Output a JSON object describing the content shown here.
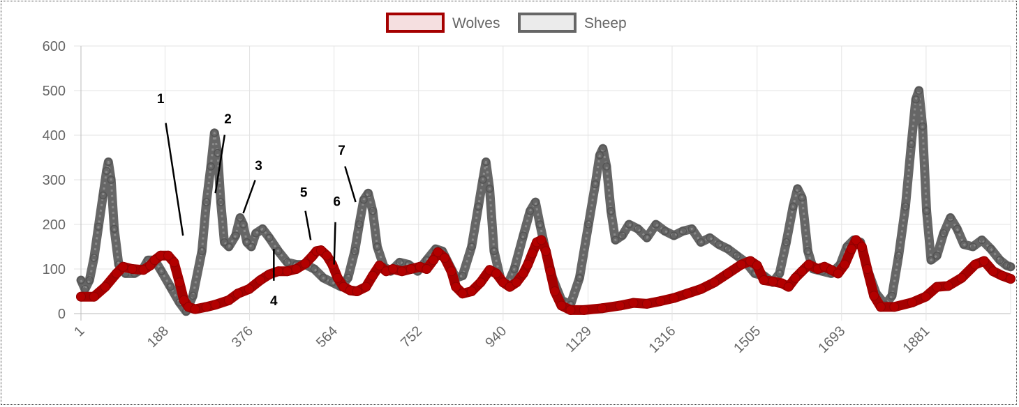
{
  "chart_data": {
    "type": "line",
    "x_tick_labels": [
      "1",
      "188",
      "376",
      "564",
      "752",
      "940",
      "1129",
      "1316",
      "1505",
      "1693",
      "1881"
    ],
    "x_tick_values": [
      1,
      188,
      376,
      564,
      752,
      940,
      1129,
      1316,
      1505,
      1693,
      1881
    ],
    "xlim": [
      1,
      2069
    ],
    "y_tick_labels": [
      "0",
      "100",
      "200",
      "300",
      "400",
      "500",
      "600"
    ],
    "ylim": [
      0,
      600
    ],
    "grid": true,
    "legend_position": "top-center",
    "series": [
      {
        "name": "Wolves",
        "color": "#a50000",
        "fill": "#f5dfe0",
        "points": [
          [
            1,
            38
          ],
          [
            30,
            38
          ],
          [
            55,
            60
          ],
          [
            80,
            90
          ],
          [
            95,
            105
          ],
          [
            115,
            100
          ],
          [
            140,
            98
          ],
          [
            155,
            108
          ],
          [
            165,
            120
          ],
          [
            178,
            130
          ],
          [
            195,
            130
          ],
          [
            208,
            115
          ],
          [
            220,
            70
          ],
          [
            230,
            30
          ],
          [
            240,
            15
          ],
          [
            255,
            10
          ],
          [
            280,
            15
          ],
          [
            300,
            20
          ],
          [
            330,
            30
          ],
          [
            350,
            45
          ],
          [
            375,
            55
          ],
          [
            400,
            75
          ],
          [
            420,
            88
          ],
          [
            440,
            95
          ],
          [
            460,
            95
          ],
          [
            480,
            100
          ],
          [
            500,
            112
          ],
          [
            515,
            128
          ],
          [
            525,
            140
          ],
          [
            535,
            142
          ],
          [
            548,
            130
          ],
          [
            560,
            110
          ],
          [
            572,
            80
          ],
          [
            585,
            60
          ],
          [
            600,
            52
          ],
          [
            615,
            50
          ],
          [
            635,
            60
          ],
          [
            650,
            85
          ],
          [
            665,
            108
          ],
          [
            680,
            95
          ],
          [
            695,
            100
          ],
          [
            715,
            95
          ],
          [
            735,
            100
          ],
          [
            755,
            105
          ],
          [
            770,
            100
          ],
          [
            785,
            120
          ],
          [
            795,
            138
          ],
          [
            810,
            125
          ],
          [
            825,
            95
          ],
          [
            835,
            60
          ],
          [
            850,
            45
          ],
          [
            870,
            50
          ],
          [
            890,
            70
          ],
          [
            910,
            98
          ],
          [
            925,
            90
          ],
          [
            940,
            70
          ],
          [
            955,
            60
          ],
          [
            970,
            70
          ],
          [
            985,
            90
          ],
          [
            995,
            110
          ],
          [
            1005,
            135
          ],
          [
            1015,
            160
          ],
          [
            1025,
            165
          ],
          [
            1035,
            140
          ],
          [
            1045,
            95
          ],
          [
            1055,
            50
          ],
          [
            1070,
            18
          ],
          [
            1090,
            8
          ],
          [
            1120,
            8
          ],
          [
            1160,
            12
          ],
          [
            1200,
            18
          ],
          [
            1230,
            24
          ],
          [
            1260,
            22
          ],
          [
            1290,
            28
          ],
          [
            1320,
            35
          ],
          [
            1350,
            45
          ],
          [
            1380,
            55
          ],
          [
            1410,
            70
          ],
          [
            1440,
            90
          ],
          [
            1470,
            110
          ],
          [
            1490,
            118
          ],
          [
            1505,
            108
          ],
          [
            1520,
            75
          ],
          [
            1540,
            72
          ],
          [
            1560,
            68
          ],
          [
            1575,
            60
          ],
          [
            1590,
            80
          ],
          [
            1605,
            95
          ],
          [
            1620,
            110
          ],
          [
            1640,
            100
          ],
          [
            1655,
            105
          ],
          [
            1670,
            98
          ],
          [
            1685,
            90
          ],
          [
            1700,
            110
          ],
          [
            1715,
            145
          ],
          [
            1725,
            165
          ],
          [
            1738,
            150
          ],
          [
            1750,
            100
          ],
          [
            1765,
            40
          ],
          [
            1780,
            15
          ],
          [
            1810,
            15
          ],
          [
            1850,
            25
          ],
          [
            1880,
            38
          ],
          [
            1905,
            60
          ],
          [
            1930,
            62
          ],
          [
            1960,
            80
          ],
          [
            1990,
            110
          ],
          [
            2010,
            118
          ],
          [
            2030,
            95
          ],
          [
            2050,
            85
          ],
          [
            2069,
            78
          ]
        ]
      },
      {
        "name": "Sheep",
        "color": "#666666",
        "fill": "#ebebeb",
        "points": [
          [
            1,
            75
          ],
          [
            10,
            55
          ],
          [
            20,
            75
          ],
          [
            30,
            125
          ],
          [
            40,
            195
          ],
          [
            50,
            265
          ],
          [
            58,
            320
          ],
          [
            62,
            340
          ],
          [
            68,
            300
          ],
          [
            75,
            190
          ],
          [
            85,
            110
          ],
          [
            100,
            90
          ],
          [
            120,
            90
          ],
          [
            140,
            102
          ],
          [
            150,
            120
          ],
          [
            165,
            120
          ],
          [
            180,
            95
          ],
          [
            200,
            60
          ],
          [
            220,
            25
          ],
          [
            235,
            5
          ],
          [
            250,
            40
          ],
          [
            270,
            140
          ],
          [
            280,
            250
          ],
          [
            290,
            330
          ],
          [
            298,
            405
          ],
          [
            305,
            360
          ],
          [
            312,
            250
          ],
          [
            320,
            160
          ],
          [
            330,
            150
          ],
          [
            345,
            175
          ],
          [
            355,
            215
          ],
          [
            362,
            200
          ],
          [
            370,
            160
          ],
          [
            380,
            150
          ],
          [
            390,
            180
          ],
          [
            405,
            190
          ],
          [
            420,
            170
          ],
          [
            440,
            140
          ],
          [
            460,
            115
          ],
          [
            480,
            110
          ],
          [
            500,
            110
          ],
          [
            520,
            100
          ],
          [
            540,
            80
          ],
          [
            560,
            70
          ],
          [
            580,
            60
          ],
          [
            595,
            80
          ],
          [
            610,
            140
          ],
          [
            620,
            200
          ],
          [
            630,
            255
          ],
          [
            640,
            270
          ],
          [
            650,
            230
          ],
          [
            660,
            150
          ],
          [
            675,
            105
          ],
          [
            690,
            95
          ],
          [
            710,
            115
          ],
          [
            730,
            110
          ],
          [
            750,
            95
          ],
          [
            770,
            120
          ],
          [
            790,
            145
          ],
          [
            805,
            140
          ],
          [
            820,
            110
          ],
          [
            835,
            80
          ],
          [
            850,
            85
          ],
          [
            870,
            150
          ],
          [
            885,
            240
          ],
          [
            895,
            300
          ],
          [
            902,
            340
          ],
          [
            910,
            280
          ],
          [
            920,
            140
          ],
          [
            935,
            75
          ],
          [
            950,
            65
          ],
          [
            965,
            100
          ],
          [
            985,
            175
          ],
          [
            1000,
            230
          ],
          [
            1012,
            250
          ],
          [
            1022,
            200
          ],
          [
            1035,
            140
          ],
          [
            1050,
            80
          ],
          [
            1070,
            30
          ],
          [
            1090,
            20
          ],
          [
            1110,
            80
          ],
          [
            1130,
            200
          ],
          [
            1145,
            290
          ],
          [
            1155,
            355
          ],
          [
            1162,
            370
          ],
          [
            1170,
            330
          ],
          [
            1180,
            230
          ],
          [
            1190,
            165
          ],
          [
            1205,
            175
          ],
          [
            1220,
            200
          ],
          [
            1240,
            190
          ],
          [
            1260,
            170
          ],
          [
            1280,
            200
          ],
          [
            1300,
            185
          ],
          [
            1320,
            175
          ],
          [
            1340,
            185
          ],
          [
            1360,
            190
          ],
          [
            1380,
            160
          ],
          [
            1400,
            170
          ],
          [
            1420,
            155
          ],
          [
            1440,
            145
          ],
          [
            1460,
            130
          ],
          [
            1480,
            115
          ],
          [
            1500,
            90
          ],
          [
            1520,
            85
          ],
          [
            1540,
            70
          ],
          [
            1555,
            90
          ],
          [
            1570,
            160
          ],
          [
            1585,
            240
          ],
          [
            1595,
            280
          ],
          [
            1605,
            260
          ],
          [
            1618,
            140
          ],
          [
            1630,
            100
          ],
          [
            1650,
            95
          ],
          [
            1670,
            90
          ],
          [
            1690,
            110
          ],
          [
            1705,
            150
          ],
          [
            1720,
            165
          ],
          [
            1735,
            160
          ],
          [
            1750,
            100
          ],
          [
            1770,
            45
          ],
          [
            1790,
            20
          ],
          [
            1805,
            40
          ],
          [
            1820,
            130
          ],
          [
            1835,
            240
          ],
          [
            1848,
            380
          ],
          [
            1858,
            480
          ],
          [
            1865,
            500
          ],
          [
            1873,
            420
          ],
          [
            1882,
            230
          ],
          [
            1892,
            120
          ],
          [
            1905,
            130
          ],
          [
            1920,
            180
          ],
          [
            1935,
            215
          ],
          [
            1950,
            190
          ],
          [
            1965,
            155
          ],
          [
            1985,
            150
          ],
          [
            2005,
            165
          ],
          [
            2025,
            145
          ],
          [
            2045,
            120
          ],
          [
            2060,
            108
          ],
          [
            2069,
            105
          ]
        ]
      }
    ],
    "annotations": [
      {
        "label": "1",
        "x": 228,
        "y": 175
      },
      {
        "label": "2",
        "x": 300,
        "y": 270
      },
      {
        "label": "3",
        "x": 362,
        "y": 225
      },
      {
        "label": "4",
        "x": 430,
        "y": 145
      },
      {
        "label": "5",
        "x": 512,
        "y": 165
      },
      {
        "label": "6",
        "x": 564,
        "y": 110
      },
      {
        "label": "7",
        "x": 612,
        "y": 250
      }
    ]
  }
}
